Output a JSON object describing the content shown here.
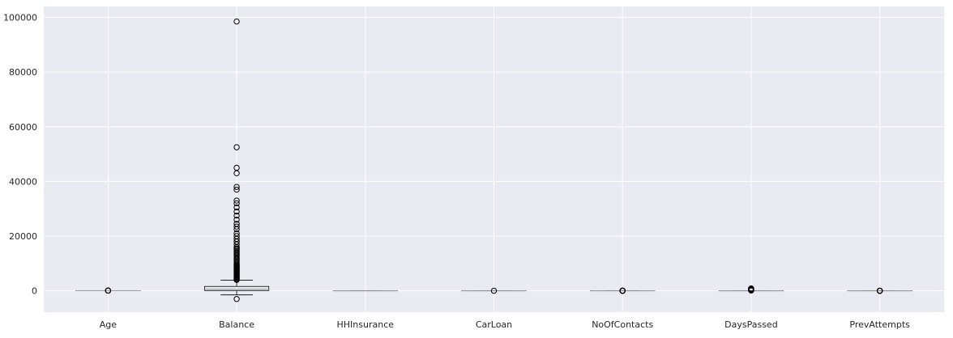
{
  "chart_data": {
    "type": "boxplot",
    "title": "",
    "xlabel": "",
    "ylabel": "",
    "ylim": [
      -7800,
      104000
    ],
    "yticks": [
      0,
      20000,
      40000,
      60000,
      80000,
      100000
    ],
    "grid": true,
    "colors": {
      "plot_background": "#eaeaf2",
      "grid": "#ffffff",
      "box": "#000000",
      "median": "#a0a0a0",
      "flier": "#000000"
    },
    "categories": [
      "Age",
      "Balance",
      "HHInsurance",
      "CarLoan",
      "NoOfContacts",
      "DaysPassed",
      "PrevAttempts"
    ],
    "boxes": [
      {
        "label": "Age",
        "whislo": 18,
        "q1": 32,
        "med": 39,
        "q3": 49,
        "whishi": 74,
        "fliers": [
          75,
          80,
          85,
          90,
          95
        ]
      },
      {
        "label": "Balance",
        "whislo": -1500,
        "q1": 100,
        "med": 550,
        "q3": 1600,
        "whishi": 3900,
        "fliers": [
          -3000,
          4000,
          4200,
          4500,
          4800,
          5100,
          5400,
          5700,
          6000,
          6300,
          6600,
          6900,
          7200,
          7500,
          7800,
          8100,
          8400,
          8700,
          9000,
          9300,
          9600,
          10000,
          10500,
          11000,
          11500,
          12000,
          12500,
          13000,
          13500,
          14000,
          14500,
          15000,
          15500,
          16000,
          17000,
          18000,
          19000,
          20000,
          21000,
          22500,
          23500,
          24500,
          26000,
          27500,
          29000,
          30500,
          32000,
          33000,
          37000,
          38000,
          43000,
          45000,
          52500,
          98500
        ]
      },
      {
        "label": "HHInsurance",
        "whislo": 0,
        "q1": 0,
        "med": 0,
        "q3": 1,
        "whishi": 1,
        "fliers": []
      },
      {
        "label": "CarLoan",
        "whislo": 0,
        "q1": 0,
        "med": 0,
        "q3": 0,
        "whishi": 0,
        "fliers": [
          1
        ]
      },
      {
        "label": "NoOfContacts",
        "whislo": 1,
        "q1": 1,
        "med": 2,
        "q3": 3,
        "whishi": 6,
        "fliers": [
          7,
          10,
          15,
          20,
          25,
          30,
          35,
          40,
          43
        ]
      },
      {
        "label": "DaysPassed",
        "whislo": -1,
        "q1": -1,
        "med": -1,
        "q3": -1,
        "whishi": -1,
        "fliers": [
          100,
          200,
          300,
          400,
          500,
          600,
          700,
          800,
          854
        ]
      },
      {
        "label": "PrevAttempts",
        "whislo": 0,
        "q1": 0,
        "med": 0,
        "q3": 0,
        "whishi": 0,
        "fliers": [
          1,
          3,
          5,
          10,
          15,
          20,
          25,
          28
        ]
      }
    ]
  }
}
